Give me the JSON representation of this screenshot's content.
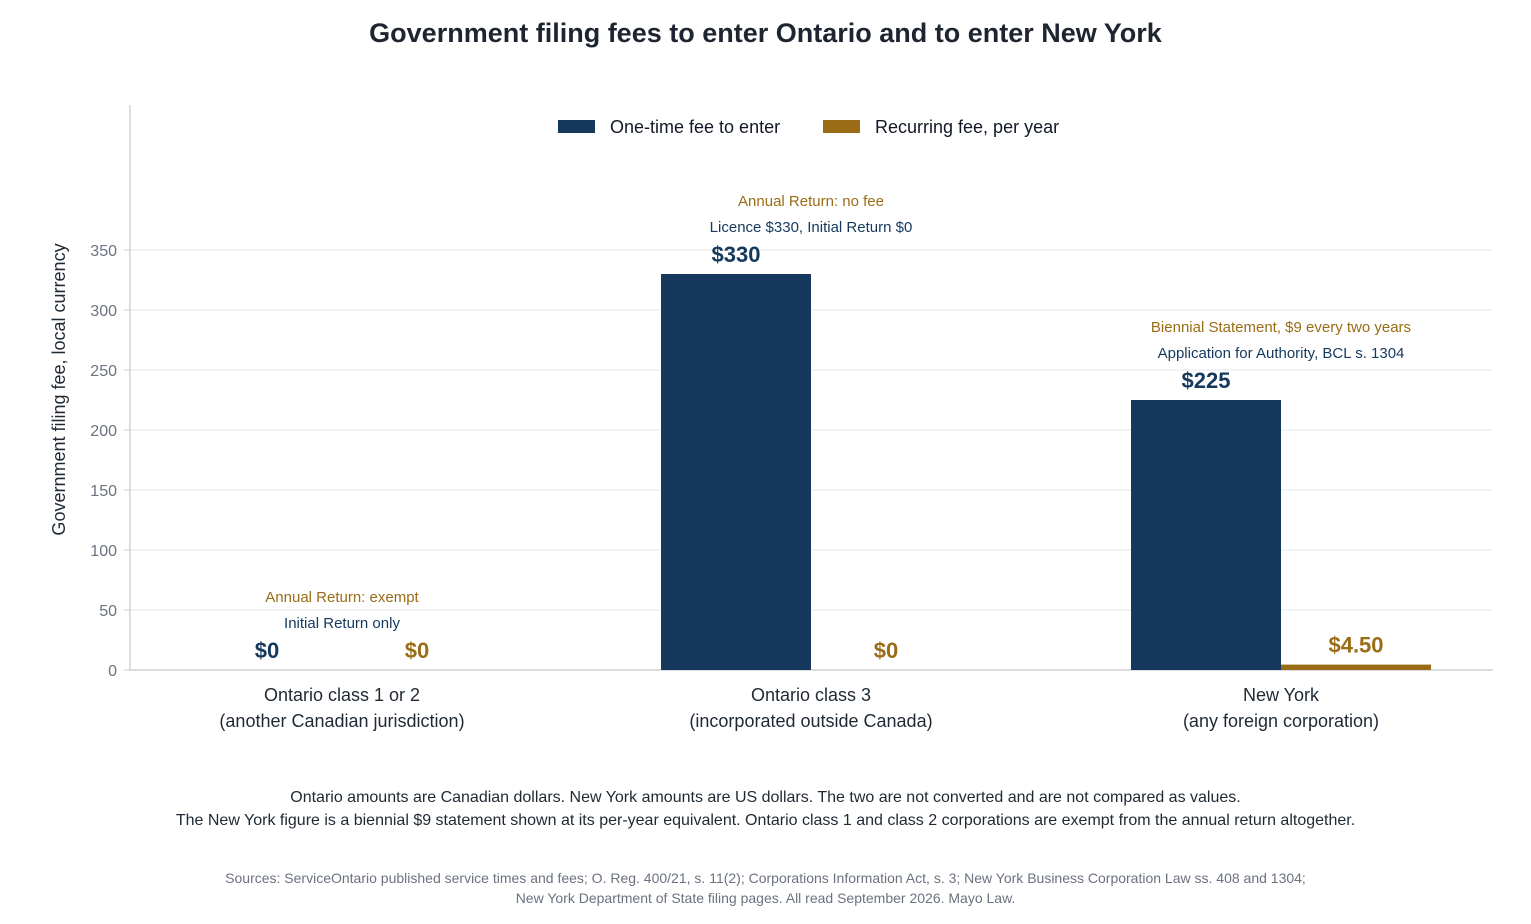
{
  "chart_data": {
    "type": "bar",
    "title": "Government filing fees to enter Ontario and to enter New York",
    "ylabel": "Government filing fee, local currency",
    "xlabel": "",
    "ylim": [
      0,
      350
    ],
    "yticks": [
      "0",
      "50",
      "100",
      "150",
      "200",
      "250",
      "300",
      "350"
    ],
    "grid": true,
    "legend_position": "top-center",
    "categories": [
      [
        "Ontario class 1 or 2",
        "(another Canadian jurisdiction)"
      ],
      [
        "Ontario class 3",
        "(incorporated outside Canada)"
      ],
      [
        "New York",
        "(any foreign corporation)"
      ]
    ],
    "series": [
      {
        "name": "One-time fee to enter",
        "color": "#15395d",
        "values": [
          0,
          330,
          225
        ],
        "value_labels": [
          "$0",
          "$330",
          "$225"
        ],
        "notes": [
          "Initial Return only",
          "Licence $330, Initial Return $0",
          "Application for Authority, BCL s. 1304"
        ]
      },
      {
        "name": "Recurring fee, per year",
        "color": "#9a6c15",
        "values": [
          0,
          0,
          4.5
        ],
        "value_labels": [
          "$0",
          "$0",
          "$4.50"
        ],
        "notes": [
          "Annual Return: exempt",
          "Annual Return: no fee",
          "Biennial Statement, $9 every two years"
        ]
      }
    ]
  },
  "footnotes": [
    "Ontario amounts are Canadian dollars. New York amounts are US dollars. The two are not converted and are not compared as values.",
    "The New York figure is a biennial $9 statement shown at its per-year equivalent. Ontario class 1 and class 2 corporations are exempt from the annual return altogether."
  ],
  "sources": [
    "Sources: ServiceOntario published service times and fees; O. Reg. 400/21, s. 11(2); Corporations Information Act, s. 3; New York Business Corporation Law ss. 408 and 1304;",
    "New York Department of State filing pages. All read September 2026. Mayo Law."
  ],
  "colors": {
    "grid": "#e5e7eb",
    "axis": "#c4c8ce",
    "tick_text": "#6b7280"
  }
}
